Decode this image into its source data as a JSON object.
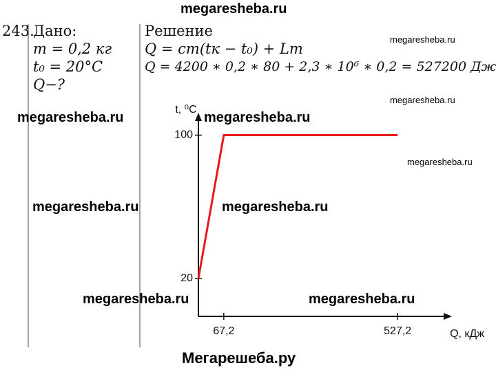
{
  "header": {
    "watermark": "megaresheba.ru"
  },
  "problem": {
    "number": "243.",
    "given_title": "Дано:",
    "given": [
      "m = 0,2 кг",
      "t₀ = 20°C",
      "Q−?"
    ],
    "solution_title": "Решение",
    "solution": [
      "Q = cm(tк − t₀) + Lm",
      "Q = 4200 ∗ 0,2 ∗ 80 + 2,3 ∗ 10⁶ ∗ 0,2 = 527200 Дж"
    ]
  },
  "chart_data": {
    "type": "line",
    "y_label": "t, ⁰C",
    "x_label": "Q, кДж",
    "x": [
      0,
      67.2,
      527.2
    ],
    "series": [
      {
        "color": "#e8191b",
        "values": [
          20,
          100,
          100
        ]
      }
    ],
    "xlim": [
      0,
      660
    ],
    "ylim": [
      0,
      114
    ],
    "xticks": [
      {
        "value": 67.2,
        "label": "67,2"
      },
      {
        "value": 527.2,
        "label": "527,2"
      }
    ],
    "yticks": [
      20,
      100
    ]
  },
  "watermarks": [
    "megaresheba.ru",
    "megaresheba.ru",
    "megaresheba.ru",
    "megaresheba.ru",
    "megaresheba.ru",
    "megaresheba.ru",
    "megaresheba.ru",
    "megaresheba.ru",
    "megaresheba.ru"
  ],
  "footer": {
    "text": "Мегарешеба.ру"
  }
}
